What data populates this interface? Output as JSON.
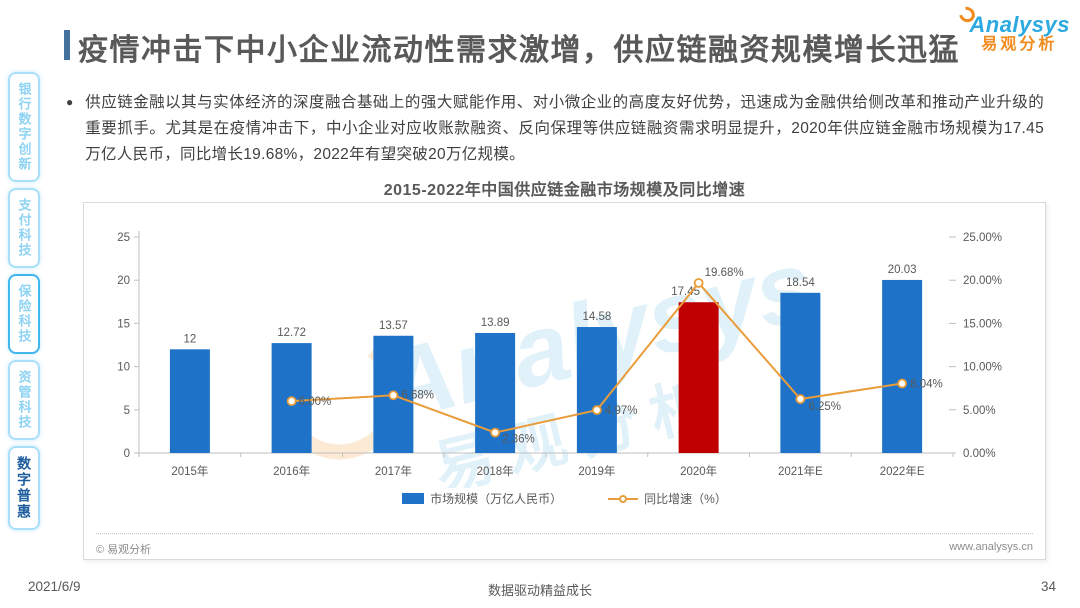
{
  "page": {
    "title": "疫情冲击下中小企业流动性需求激增，供应链融资规模增长迅猛",
    "date": "2021/6/9",
    "footer_slogan": "数据驱动精益成长",
    "page_number": "34"
  },
  "logo": {
    "brand": "Analysys",
    "brand_cn": "易观分析"
  },
  "icons": {
    "bullet": "●"
  },
  "sidebar": {
    "items": [
      {
        "label": "银行数字创新",
        "active": false
      },
      {
        "label": "支付科技",
        "active": false
      },
      {
        "label": "保险科技",
        "active": false,
        "highlighted_border": true
      },
      {
        "label": "资管科技",
        "active": false
      },
      {
        "label": "数字普惠",
        "active": true
      }
    ]
  },
  "summary": {
    "text": "供应链金融以其与实体经济的深度融合基础上的强大赋能作用、对小微企业的高度友好优势，迅速成为金融供给侧改革和推动产业升级的重要抓手。尤其是在疫情冲击下，中小企业对应收账款融资、反向保理等供应链融资需求明显提升，2020年供应链金融市场规模为17.45万亿人民币，同比增长19.68%，2022年有望突破20万亿规模。"
  },
  "chart_panel": {
    "source_note": "© 易观分析",
    "website": "www.analysys.cn",
    "watermark_en": "Analysys",
    "watermark_cn": "易观分析"
  },
  "colors": {
    "bar_blue": "#1E73C8",
    "bar_highlight_red": "#C00000",
    "line_orange": "#E99C3A",
    "axis_gray": "#BFBFBF",
    "label_gray": "#595959"
  },
  "chart_data": {
    "type": "bar+line combo",
    "title": "2015-2022年中国供应链金融市场规模及同比增速",
    "categories": [
      "2015年",
      "2016年",
      "2017年",
      "2018年",
      "2019年",
      "2020年",
      "2021年E",
      "2022年E"
    ],
    "series": [
      {
        "name": "市场规模（万亿人民币）",
        "type": "bar",
        "axis": "left",
        "values": [
          12,
          12.72,
          13.57,
          13.89,
          14.58,
          17.45,
          18.54,
          20.03
        ],
        "labels": [
          "12",
          "12.72",
          "13.57",
          "13.89",
          "14.58",
          "17.45",
          "18.54",
          "20.03"
        ],
        "color": "#1E73C8",
        "highlight_index": 5,
        "highlight_color": "#C00000"
      },
      {
        "name": "同比增速（%）",
        "type": "line",
        "axis": "right",
        "values": [
          null,
          6.0,
          6.68,
          2.36,
          4.97,
          19.68,
          6.25,
          8.04
        ],
        "labels": [
          null,
          "6.00%",
          "6.68%",
          "2.36%",
          "4.97%",
          "19.68%",
          "6.25%",
          "8.04%"
        ],
        "color": "#E99C3A"
      }
    ],
    "left_axis": {
      "ticks": [
        "0",
        "5",
        "10",
        "15",
        "20",
        "25"
      ],
      "min": 0,
      "max": 25
    },
    "right_axis": {
      "ticks": [
        "0.00%",
        "5.00%",
        "10.00%",
        "15.00%",
        "20.00%",
        "25.00%"
      ],
      "min": 0,
      "max": 25
    },
    "grid": false,
    "legend_position": "bottom"
  }
}
